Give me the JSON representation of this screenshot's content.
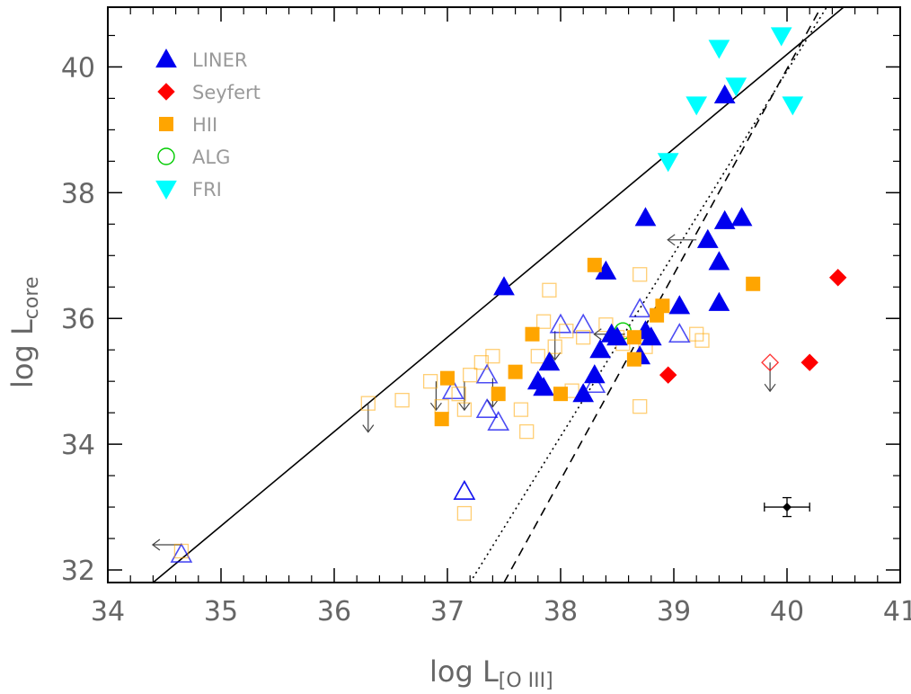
{
  "chart_data": {
    "type": "scatter",
    "xlabel": {
      "main": "log L",
      "sub": "[O III]"
    },
    "ylabel": {
      "main": "log L",
      "sub": "core"
    },
    "xlim": [
      34,
      41
    ],
    "ylim": [
      31.8,
      40.95
    ],
    "xticks": [
      34,
      35,
      36,
      37,
      38,
      39,
      40,
      41
    ],
    "yticks": [
      32,
      34,
      36,
      38,
      40
    ],
    "xtick_labels": [
      "34",
      "35",
      "36",
      "37",
      "38",
      "39",
      "40",
      "41"
    ],
    "ytick_labels": [
      "32",
      "34",
      "36",
      "38",
      "40"
    ],
    "colors": {
      "liner": "#0000ee",
      "seyfert": "#ff0000",
      "hii": "#ffa500",
      "alg": "#00cc00",
      "fri": "#00ffff",
      "line": "#000000",
      "upper_limit": "#444444"
    },
    "legend": [
      {
        "name": "LINER",
        "marker": "triangle",
        "color": "#0000ee"
      },
      {
        "name": "Seyfert",
        "marker": "diamond",
        "color": "#ff0000"
      },
      {
        "name": "HII",
        "marker": "square",
        "color": "#ffa500"
      },
      {
        "name": "ALG",
        "marker": "circle-open",
        "color": "#00cc00"
      },
      {
        "name": "FRI",
        "marker": "triangle-down",
        "color": "#00ffff"
      }
    ],
    "lines": [
      {
        "name": "solid",
        "style": "solid",
        "x": [
          34.4,
          40.5
        ],
        "y": [
          31.8,
          40.95
        ]
      },
      {
        "name": "dashed",
        "style": "dashed",
        "x": [
          37.5,
          40.3
        ],
        "y": [
          31.8,
          40.95
        ]
      },
      {
        "name": "dotted",
        "style": "dotted",
        "x": [
          37.2,
          40.35
        ],
        "y": [
          31.8,
          40.95
        ]
      }
    ],
    "series": [
      {
        "name": "LINER",
        "marker": "triangle",
        "filled": true,
        "x": [
          37.5,
          38.4,
          38.75,
          39.3,
          39.45,
          39.6,
          39.4,
          39.4,
          39.45,
          38.45,
          38.5,
          38.75,
          38.8,
          38.7,
          39.05,
          37.9,
          37.8,
          37.85,
          38.35,
          38.2,
          38.3
        ],
        "y": [
          36.5,
          36.75,
          37.6,
          37.25,
          37.55,
          37.6,
          36.9,
          36.25,
          39.55,
          35.75,
          35.7,
          35.8,
          35.7,
          35.4,
          36.2,
          35.3,
          35.0,
          34.9,
          35.5,
          34.8,
          35.1
        ]
      },
      {
        "name": "LINER (open)",
        "marker": "triangle",
        "filled": false,
        "x": [
          37.35,
          37.35,
          37.45,
          37.05,
          37.15,
          38.0,
          38.2,
          38.3,
          38.7,
          39.05,
          37.15,
          34.65
        ],
        "y": [
          35.1,
          34.55,
          34.35,
          34.85,
          33.25,
          35.9,
          35.9,
          34.95,
          36.15,
          35.75,
          33.25,
          32.25
        ]
      },
      {
        "name": "Seyfert",
        "marker": "diamond",
        "filled": true,
        "x": [
          40.45,
          40.2,
          38.95
        ],
        "y": [
          36.65,
          35.3,
          35.1
        ]
      },
      {
        "name": "Seyfert (open)",
        "marker": "diamond",
        "filled": false,
        "x": [
          39.85
        ],
        "y": [
          35.3
        ]
      },
      {
        "name": "HII",
        "marker": "square",
        "filled": true,
        "x": [
          38.3,
          38.9,
          38.85,
          38.65,
          38.65,
          39.7,
          37.75,
          37.6,
          37.45,
          37.0,
          36.95,
          38.0
        ],
        "y": [
          36.85,
          36.2,
          36.05,
          35.7,
          35.35,
          36.55,
          35.75,
          35.15,
          34.8,
          35.05,
          34.4,
          34.8
        ]
      },
      {
        "name": "HII (open)",
        "marker": "square",
        "filled": false,
        "x": [
          37.8,
          37.85,
          38.05,
          38.2,
          38.4,
          38.7,
          36.85,
          36.95,
          37.2,
          37.3,
          37.4,
          37.65,
          37.7,
          36.6,
          37.1,
          37.15,
          38.5,
          38.55,
          39.2,
          39.25,
          38.75,
          38.7,
          37.9,
          37.95,
          38.1,
          36.3,
          37.15,
          34.65
        ],
        "y": [
          35.4,
          35.95,
          35.8,
          35.7,
          35.9,
          36.7,
          35.0,
          34.6,
          35.1,
          35.3,
          35.4,
          34.55,
          34.2,
          34.7,
          34.8,
          34.55,
          35.7,
          35.6,
          35.75,
          35.65,
          35.55,
          34.6,
          36.45,
          35.55,
          34.85,
          34.65,
          32.9,
          32.3
        ]
      },
      {
        "name": "ALG",
        "marker": "circle-open",
        "filled": false,
        "x": [
          38.55
        ],
        "y": [
          35.8
        ]
      },
      {
        "name": "FRI",
        "marker": "triangle-down",
        "filled": true,
        "x": [
          39.4,
          39.95,
          39.2,
          39.55,
          40.05,
          38.95
        ],
        "y": [
          40.3,
          40.5,
          39.4,
          39.7,
          39.4,
          38.5
        ]
      }
    ],
    "upper_limits": [
      {
        "x": 36.3,
        "y": 34.65,
        "direction": "down"
      },
      {
        "x": 36.9,
        "y": 35.0,
        "direction": "down"
      },
      {
        "x": 37.15,
        "y": 35.0,
        "direction": "down"
      },
      {
        "x": 37.4,
        "y": 35.05,
        "direction": "down"
      },
      {
        "x": 37.95,
        "y": 35.8,
        "direction": "down"
      },
      {
        "x": 39.85,
        "y": 35.3,
        "direction": "down"
      },
      {
        "x": 39.2,
        "y": 37.25,
        "direction": "left"
      },
      {
        "x": 38.55,
        "y": 35.75,
        "direction": "left"
      },
      {
        "x": 34.65,
        "y": 32.4,
        "direction": "left"
      }
    ],
    "error_bar": {
      "x": 40.0,
      "y": 33.0,
      "xerr": 0.2,
      "yerr": 0.15
    }
  }
}
